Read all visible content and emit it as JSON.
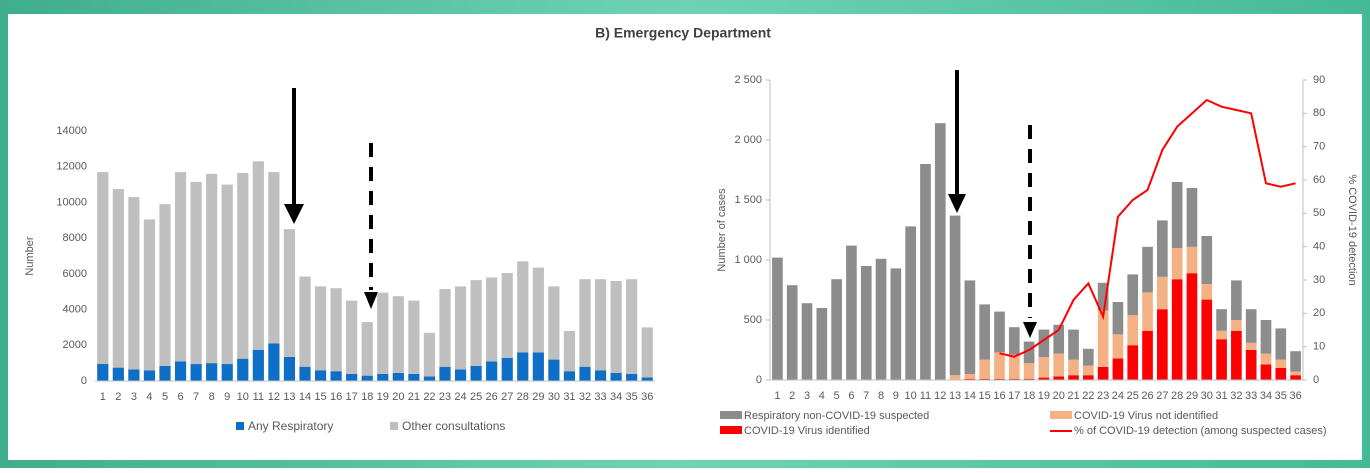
{
  "title": "B) Emergency Department",
  "chart_data": [
    {
      "type": "bar",
      "stacked": true,
      "ylabel": "Number",
      "categories": [
        "1",
        "2",
        "3",
        "4",
        "5",
        "6",
        "7",
        "8",
        "9",
        "10",
        "11",
        "12",
        "13",
        "14",
        "15",
        "16",
        "17",
        "18",
        "19",
        "20",
        "21",
        "22",
        "23",
        "24",
        "25",
        "26",
        "27",
        "28",
        "29",
        "30",
        "31",
        "32",
        "33",
        "34",
        "35",
        "36"
      ],
      "ylim": [
        0,
        14000
      ],
      "yticks": [
        0,
        2000,
        4000,
        6000,
        8000,
        10000,
        12000,
        14000
      ],
      "legend": "bottom",
      "series": [
        {
          "name": "Any Respiratory",
          "color": "#0f6fc6",
          "values": [
            950,
            750,
            650,
            600,
            850,
            1100,
            950,
            1000,
            950,
            1250,
            1750,
            2100,
            1350,
            800,
            600,
            550,
            400,
            300,
            400,
            450,
            400,
            250,
            800,
            650,
            850,
            1100,
            1300,
            1600,
            1600,
            1200,
            550,
            800,
            600,
            450,
            400,
            200
          ]
        },
        {
          "name": "Other consultations",
          "color": "#bfbfbf",
          "values": [
            10750,
            10000,
            9650,
            8450,
            9050,
            10600,
            10200,
            10600,
            10050,
            10400,
            10550,
            9600,
            7150,
            5050,
            4700,
            4650,
            4100,
            3000,
            4550,
            4300,
            4100,
            2450,
            4350,
            4650,
            4800,
            4700,
            4750,
            5100,
            4750,
            4100,
            2250,
            4900,
            5100,
            5150,
            5300,
            2800
          ]
        }
      ]
    },
    {
      "type": "bar",
      "stacked": true,
      "ylabel": "Number of cases",
      "y2label": "% COVID-19 detection",
      "categories": [
        "1",
        "2",
        "3",
        "4",
        "5",
        "6",
        "7",
        "8",
        "9",
        "10",
        "11",
        "12",
        "13",
        "14",
        "15",
        "16",
        "17",
        "18",
        "19",
        "20",
        "21",
        "22",
        "23",
        "24",
        "25",
        "26",
        "27",
        "28",
        "29",
        "30",
        "31",
        "32",
        "33",
        "34",
        "35",
        "36"
      ],
      "ylim": [
        0,
        2500
      ],
      "yticks": [
        0,
        500,
        {
          "value": 1000,
          "label": "1 000"
        },
        {
          "value": 1500,
          "label": "1 500"
        },
        {
          "value": 2000,
          "label": "2 000"
        },
        {
          "value": 2500,
          "label": "2 500"
        }
      ],
      "y2lim": [
        0,
        90
      ],
      "y2ticks": [
        0,
        10,
        20,
        30,
        40,
        50,
        60,
        70,
        80,
        90
      ],
      "legend": "bottom",
      "series": [
        {
          "name": "COVID-19 Virus identified",
          "color": "#ff0000",
          "values": [
            0,
            0,
            0,
            0,
            0,
            0,
            0,
            0,
            0,
            0,
            0,
            0,
            0,
            10,
            10,
            10,
            10,
            10,
            20,
            30,
            40,
            40,
            110,
            180,
            290,
            410,
            590,
            840,
            890,
            670,
            340,
            410,
            250,
            130,
            100,
            40
          ]
        },
        {
          "name": "COVID-19 Virus not identified",
          "color": "#f4b183",
          "values": [
            0,
            0,
            0,
            0,
            0,
            0,
            0,
            0,
            0,
            0,
            0,
            0,
            40,
            40,
            160,
            220,
            200,
            130,
            170,
            190,
            130,
            80,
            470,
            200,
            250,
            320,
            270,
            260,
            220,
            130,
            70,
            90,
            60,
            90,
            70,
            30
          ]
        },
        {
          "name": "Respiratory non-COVID-19 suspected",
          "color": "#8c8c8c",
          "values": [
            1020,
            790,
            640,
            600,
            840,
            1120,
            950,
            1010,
            930,
            1280,
            1800,
            2140,
            1330,
            780,
            460,
            340,
            230,
            180,
            230,
            240,
            250,
            140,
            230,
            270,
            340,
            380,
            470,
            550,
            490,
            400,
            180,
            330,
            280,
            280,
            260,
            170
          ]
        },
        {
          "name": "% of COVID-19 detection (among suspected cases)",
          "color": "#ff0000",
          "type": "line",
          "axis": "y2",
          "values": [
            null,
            null,
            null,
            null,
            null,
            null,
            null,
            null,
            null,
            null,
            null,
            null,
            null,
            null,
            null,
            8,
            7,
            9,
            12,
            15,
            24,
            29,
            19,
            49,
            54,
            57,
            69,
            76,
            80,
            84,
            82,
            81,
            80,
            59,
            58,
            59
          ]
        }
      ]
    }
  ]
}
